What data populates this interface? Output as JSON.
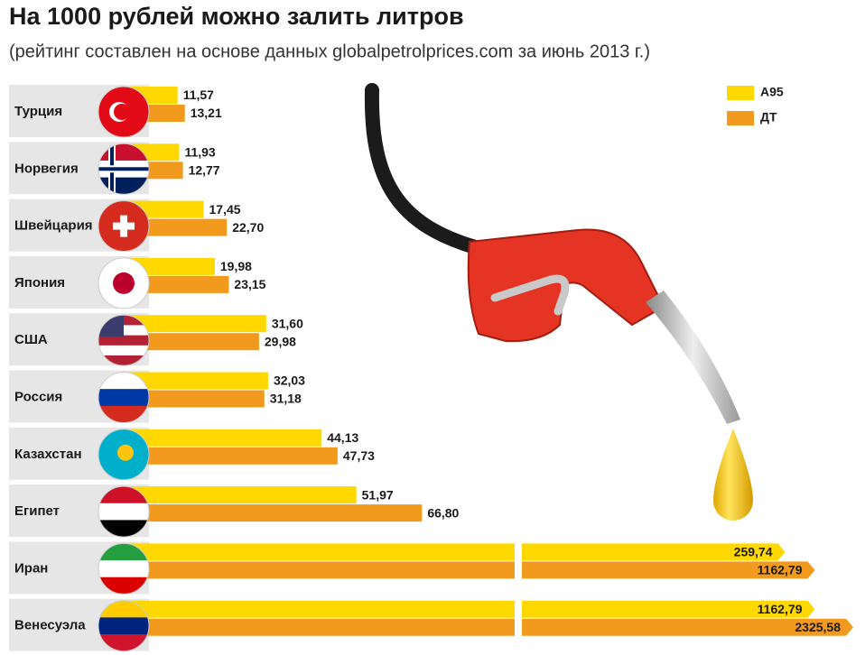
{
  "chart_data": {
    "type": "bar",
    "orientation": "horizontal",
    "title": "На 1000 рублей можно залить литров",
    "subtitle": "(рейтинг составлен на основе данных globalpetrolprices.com за июнь 2013 г.)",
    "categories": [
      "Турция",
      "Норвегия",
      "Швейцария",
      "Япония",
      "США",
      "Россия",
      "Казахстан",
      "Египет",
      "Иран",
      "Венесуэла"
    ],
    "series": [
      {
        "name": "А95",
        "color": "#ffd800",
        "values": [
          11.57,
          11.93,
          17.45,
          19.98,
          31.6,
          32.03,
          44.13,
          51.97,
          259.74,
          1162.79
        ],
        "value_labels": [
          "11,57",
          "11,93",
          "17,45",
          "19,98",
          "31,60",
          "32,03",
          "44,13",
          "51,97",
          "259,74",
          "1162,79"
        ]
      },
      {
        "name": "ДТ",
        "color": "#f29a1d",
        "values": [
          13.21,
          12.77,
          22.7,
          23.15,
          29.98,
          31.18,
          47.73,
          66.8,
          1162.79,
          2325.58
        ],
        "value_labels": [
          "13,21",
          "12,77",
          "22,70",
          "23,15",
          "29,98",
          "31,18",
          "47,73",
          "66,80",
          "1162,79",
          "2325,58"
        ]
      }
    ],
    "legend": "top-right"
  }
}
